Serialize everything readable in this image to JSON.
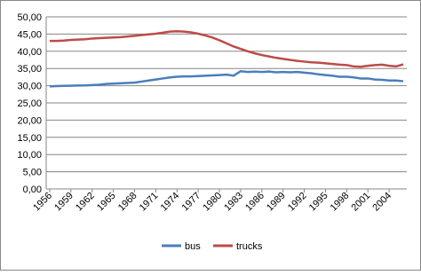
{
  "chart_data": {
    "type": "line",
    "x": [
      1956,
      1957,
      1958,
      1959,
      1960,
      1961,
      1962,
      1963,
      1964,
      1965,
      1966,
      1967,
      1968,
      1969,
      1970,
      1971,
      1972,
      1973,
      1974,
      1975,
      1976,
      1977,
      1978,
      1979,
      1980,
      1981,
      1982,
      1983,
      1984,
      1985,
      1986,
      1987,
      1988,
      1989,
      1990,
      1991,
      1992,
      1993,
      1994,
      1995,
      1996,
      1997,
      1998,
      1999,
      2000,
      2001,
      2002,
      2003,
      2004,
      2005,
      2006
    ],
    "xlim": [
      1955.5,
      2006.5
    ],
    "xticks": [
      1956,
      1959,
      1962,
      1965,
      1968,
      1971,
      1974,
      1977,
      1980,
      1983,
      1986,
      1989,
      1992,
      1995,
      1998,
      2001,
      2004
    ],
    "ylim": [
      0,
      50
    ],
    "yticks": [
      {
        "value": 0,
        "label": "0,00"
      },
      {
        "value": 5,
        "label": "5,00"
      },
      {
        "value": 10,
        "label": "10,00"
      },
      {
        "value": 15,
        "label": "15,00"
      },
      {
        "value": 20,
        "label": "20,00"
      },
      {
        "value": 25,
        "label": "25,00"
      },
      {
        "value": 30,
        "label": "30,00"
      },
      {
        "value": 35,
        "label": "35,00"
      },
      {
        "value": 40,
        "label": "40,00"
      },
      {
        "value": 45,
        "label": "45,00"
      },
      {
        "value": 50,
        "label": "50,00"
      }
    ],
    "grid": true,
    "legend": "bottom",
    "series": [
      {
        "name": "bus",
        "color": "#4a7ebb",
        "values": [
          29.8,
          29.9,
          29.95,
          30.0,
          30.05,
          30.1,
          30.2,
          30.3,
          30.5,
          30.6,
          30.7,
          30.8,
          30.9,
          31.2,
          31.5,
          31.8,
          32.1,
          32.4,
          32.6,
          32.7,
          32.7,
          32.8,
          32.9,
          33.0,
          33.1,
          33.2,
          32.9,
          34.2,
          34.0,
          34.1,
          34.0,
          34.1,
          33.9,
          34.0,
          33.9,
          34.0,
          33.8,
          33.6,
          33.3,
          33.1,
          32.9,
          32.6,
          32.6,
          32.4,
          32.1,
          32.1,
          31.8,
          31.7,
          31.5,
          31.5,
          31.3
        ]
      },
      {
        "name": "trucks",
        "color": "#be4b48",
        "values": [
          43.0,
          43.0,
          43.1,
          43.3,
          43.4,
          43.5,
          43.7,
          43.8,
          43.9,
          44.0,
          44.1,
          44.3,
          44.5,
          44.7,
          44.9,
          45.1,
          45.4,
          45.7,
          45.8,
          45.7,
          45.5,
          45.1,
          44.6,
          44.0,
          43.2,
          42.3,
          41.4,
          40.7,
          40.0,
          39.4,
          38.9,
          38.5,
          38.1,
          37.8,
          37.5,
          37.2,
          37.0,
          36.8,
          36.7,
          36.5,
          36.3,
          36.1,
          36.0,
          35.6,
          35.5,
          35.8,
          36.0,
          36.1,
          35.8,
          35.6,
          36.2
        ]
      }
    ]
  }
}
